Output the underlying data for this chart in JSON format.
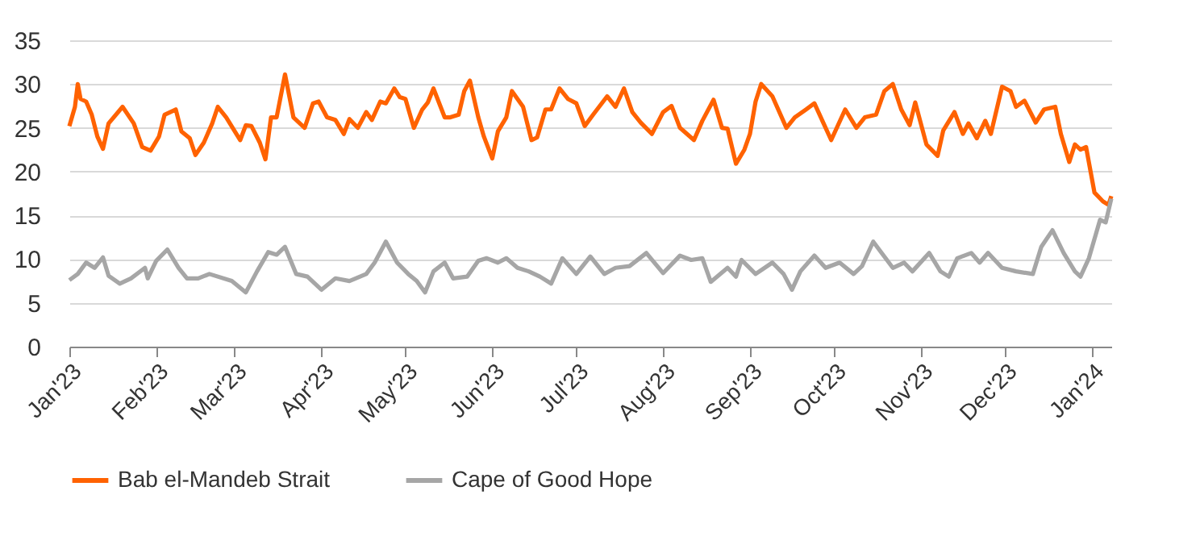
{
  "chart_data": {
    "type": "line",
    "grid": "y",
    "legend": "bottom",
    "line_style": "solid",
    "xlim": [
      "2023-01-01",
      "2024-01-08"
    ],
    "ylim": [
      0,
      35
    ],
    "yticks": [
      0,
      5,
      10,
      15,
      20,
      25,
      30,
      35
    ],
    "xticks": [
      {
        "value": "2023-01-01",
        "label": "Jan'23"
      },
      {
        "value": "2023-02-01",
        "label": "Feb'23"
      },
      {
        "value": "2023-03-01",
        "label": "Mar'23"
      },
      {
        "value": "2023-04-01",
        "label": "Apr'23"
      },
      {
        "value": "2023-05-01",
        "label": "May'23"
      },
      {
        "value": "2023-06-01",
        "label": "Jun'23"
      },
      {
        "value": "2023-07-01",
        "label": "Jul'23"
      },
      {
        "value": "2023-08-01",
        "label": "Aug'23"
      },
      {
        "value": "2023-09-01",
        "label": "Sep'23"
      },
      {
        "value": "2023-10-01",
        "label": "Oct'23"
      },
      {
        "value": "2023-11-01",
        "label": "Nov'23"
      },
      {
        "value": "2023-12-01",
        "label": "Dec'23"
      },
      {
        "value": "2024-01-01",
        "label": "Jan'24"
      }
    ],
    "series": [
      {
        "name": "Bab el-Mandeb Strait",
        "color": "#ff6200",
        "x": [
          "2023-01-01",
          "2023-01-03",
          "2023-01-04",
          "2023-01-05",
          "2023-01-07",
          "2023-01-09",
          "2023-01-11",
          "2023-01-13",
          "2023-01-15",
          "2023-01-20",
          "2023-01-24",
          "2023-01-27",
          "2023-01-30",
          "2023-02-02",
          "2023-02-04",
          "2023-02-06",
          "2023-02-08",
          "2023-02-10",
          "2023-02-13",
          "2023-02-15",
          "2023-02-18",
          "2023-02-21",
          "2023-02-23",
          "2023-02-26",
          "2023-03-03",
          "2023-03-05",
          "2023-03-07",
          "2023-03-10",
          "2023-03-12",
          "2023-03-14",
          "2023-03-16",
          "2023-03-19",
          "2023-03-22",
          "2023-03-26",
          "2023-03-29",
          "2023-03-31",
          "2023-04-03",
          "2023-04-06",
          "2023-04-09",
          "2023-04-11",
          "2023-04-14",
          "2023-04-17",
          "2023-04-19",
          "2023-04-22",
          "2023-04-24",
          "2023-04-27",
          "2023-04-29",
          "2023-05-01",
          "2023-05-04",
          "2023-05-07",
          "2023-05-09",
          "2023-05-11",
          "2023-05-15",
          "2023-05-17",
          "2023-05-20",
          "2023-05-22",
          "2023-05-24",
          "2023-05-27",
          "2023-05-29",
          "2023-06-01",
          "2023-06-03",
          "2023-06-06",
          "2023-06-08",
          "2023-06-12",
          "2023-06-15",
          "2023-06-17",
          "2023-06-20",
          "2023-06-22",
          "2023-06-25",
          "2023-06-28",
          "2023-07-01",
          "2023-07-04",
          "2023-07-07",
          "2023-07-12",
          "2023-07-15",
          "2023-07-18",
          "2023-07-21",
          "2023-07-24",
          "2023-07-28",
          "2023-08-01",
          "2023-08-04",
          "2023-08-07",
          "2023-08-12",
          "2023-08-15",
          "2023-08-19",
          "2023-08-22",
          "2023-08-24",
          "2023-08-27",
          "2023-08-30",
          "2023-09-01",
          "2023-09-03",
          "2023-09-05",
          "2023-09-09",
          "2023-09-14",
          "2023-09-17",
          "2023-09-21",
          "2023-09-24",
          "2023-09-30",
          "2023-10-05",
          "2023-10-09",
          "2023-10-12",
          "2023-10-16",
          "2023-10-19",
          "2023-10-22",
          "2023-10-25",
          "2023-10-28",
          "2023-10-30",
          "2023-11-03",
          "2023-11-07",
          "2023-11-09",
          "2023-11-13",
          "2023-11-16",
          "2023-11-18",
          "2023-11-21",
          "2023-11-24",
          "2023-11-26",
          "2023-11-30",
          "2023-12-03",
          "2023-12-05",
          "2023-12-08",
          "2023-12-12",
          "2023-12-15",
          "2023-12-19",
          "2023-12-21",
          "2023-12-24",
          "2023-12-26",
          "2023-12-28",
          "2023-12-30",
          "2024-01-02",
          "2024-01-05",
          "2024-01-07",
          "2024-01-08"
        ],
        "values": [
          25.2,
          27.4,
          30.0,
          28.3,
          28.0,
          26.5,
          24.0,
          22.6,
          25.5,
          27.4,
          25.5,
          22.8,
          22.4,
          24.0,
          26.5,
          26.8,
          27.1,
          24.6,
          23.8,
          21.9,
          23.3,
          25.5,
          27.4,
          26.2,
          23.6,
          25.3,
          25.2,
          23.3,
          21.4,
          26.2,
          26.2,
          31.1,
          26.2,
          25.0,
          27.8,
          28.0,
          26.2,
          25.9,
          24.3,
          26.0,
          25.0,
          26.8,
          25.9,
          28.0,
          27.8,
          29.5,
          28.5,
          28.3,
          25.0,
          27.1,
          27.9,
          29.5,
          26.2,
          26.2,
          26.5,
          29.2,
          30.4,
          26.2,
          24.0,
          21.5,
          24.6,
          26.2,
          29.2,
          27.4,
          23.6,
          23.9,
          27.1,
          27.1,
          29.5,
          28.3,
          27.8,
          25.2,
          26.5,
          28.6,
          27.4,
          29.5,
          26.8,
          25.6,
          24.3,
          26.8,
          27.5,
          25.0,
          23.6,
          25.8,
          28.2,
          25.0,
          24.9,
          20.9,
          22.5,
          24.3,
          28.0,
          30.0,
          28.6,
          25.0,
          26.2,
          27.1,
          27.8,
          23.6,
          27.1,
          25.0,
          26.2,
          26.5,
          29.2,
          30.0,
          27.1,
          25.3,
          27.9,
          23.1,
          21.8,
          24.7,
          26.8,
          24.3,
          25.5,
          23.8,
          25.8,
          24.3,
          29.7,
          29.2,
          27.4,
          28.1,
          25.6,
          27.1,
          27.4,
          24.3,
          21.1,
          23.1,
          22.5,
          22.8,
          17.6,
          16.6,
          16.2,
          17.2
        ]
      },
      {
        "name": "Cape of Good Hope",
        "color": "#a6a6a6",
        "x": [
          "2023-01-01",
          "2023-01-04",
          "2023-01-07",
          "2023-01-10",
          "2023-01-13",
          "2023-01-15",
          "2023-01-19",
          "2023-01-23",
          "2023-01-28",
          "2023-01-29",
          "2023-02-01",
          "2023-02-05",
          "2023-02-09",
          "2023-02-12",
          "2023-02-16",
          "2023-02-20",
          "2023-02-28",
          "2023-03-05",
          "2023-03-09",
          "2023-03-13",
          "2023-03-16",
          "2023-03-19",
          "2023-03-23",
          "2023-03-27",
          "2023-04-01",
          "2023-04-06",
          "2023-04-11",
          "2023-04-17",
          "2023-04-20",
          "2023-04-24",
          "2023-04-28",
          "2023-05-02",
          "2023-05-05",
          "2023-05-08",
          "2023-05-11",
          "2023-05-15",
          "2023-05-18",
          "2023-05-23",
          "2023-05-27",
          "2023-05-30",
          "2023-06-03",
          "2023-06-06",
          "2023-06-10",
          "2023-06-14",
          "2023-06-18",
          "2023-06-22",
          "2023-06-26",
          "2023-07-01",
          "2023-07-06",
          "2023-07-11",
          "2023-07-15",
          "2023-07-20",
          "2023-07-26",
          "2023-08-01",
          "2023-08-07",
          "2023-08-11",
          "2023-08-15",
          "2023-08-18",
          "2023-08-24",
          "2023-08-27",
          "2023-08-29",
          "2023-09-03",
          "2023-09-09",
          "2023-09-13",
          "2023-09-16",
          "2023-09-19",
          "2023-09-24",
          "2023-09-28",
          "2023-10-03",
          "2023-10-08",
          "2023-10-11",
          "2023-10-15",
          "2023-10-18",
          "2023-10-22",
          "2023-10-26",
          "2023-10-29",
          "2023-11-04",
          "2023-11-08",
          "2023-11-11",
          "2023-11-14",
          "2023-11-19",
          "2023-11-22",
          "2023-11-25",
          "2023-11-30",
          "2023-12-05",
          "2023-12-11",
          "2023-12-14",
          "2023-12-18",
          "2023-12-22",
          "2023-12-26",
          "2023-12-28",
          "2023-12-31",
          "2024-01-04",
          "2024-01-06",
          "2024-01-08"
        ],
        "values": [
          7.6,
          8.3,
          9.6,
          9.0,
          10.2,
          8.1,
          7.2,
          7.8,
          9.0,
          7.8,
          9.8,
          11.1,
          9.0,
          7.8,
          7.8,
          8.3,
          7.5,
          6.2,
          8.6,
          10.8,
          10.5,
          11.4,
          8.3,
          8.0,
          6.5,
          7.8,
          7.5,
          8.3,
          9.6,
          12.0,
          9.6,
          8.3,
          7.5,
          6.2,
          8.6,
          9.6,
          7.8,
          8.0,
          9.8,
          10.1,
          9.6,
          10.1,
          9.0,
          8.6,
          8.0,
          7.2,
          10.1,
          8.3,
          10.3,
          8.3,
          9.0,
          9.2,
          10.7,
          8.4,
          10.4,
          9.9,
          10.1,
          7.4,
          9.0,
          8.0,
          9.9,
          8.3,
          9.6,
          8.3,
          6.5,
          8.6,
          10.4,
          9.0,
          9.6,
          8.3,
          9.2,
          12.0,
          10.7,
          9.0,
          9.6,
          8.6,
          10.7,
          8.6,
          8.0,
          10.1,
          10.7,
          9.6,
          10.7,
          9.0,
          8.6,
          8.3,
          11.4,
          13.3,
          10.7,
          8.6,
          8.0,
          10.1,
          14.5,
          14.2,
          16.9
        ]
      }
    ]
  }
}
